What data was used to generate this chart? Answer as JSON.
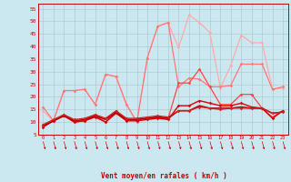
{
  "xlabel": "Vent moyen/en rafales ( km/h )",
  "background_color": "#cbe8f0",
  "grid_color": "#aac4cc",
  "x": [
    0,
    1,
    2,
    3,
    4,
    5,
    6,
    7,
    8,
    9,
    10,
    11,
    12,
    13,
    14,
    15,
    16,
    17,
    18,
    19,
    20,
    21,
    22,
    23
  ],
  "ylim": [
    5,
    57
  ],
  "xlim": [
    -0.5,
    23.5
  ],
  "yticks": [
    5,
    10,
    15,
    20,
    25,
    30,
    35,
    40,
    45,
    50,
    55
  ],
  "series": [
    {
      "color": "#ffaaaa",
      "values": [
        14.5,
        10.5,
        22.5,
        22.5,
        23.0,
        17.0,
        29.0,
        28.0,
        17.0,
        10.0,
        35.5,
        48.0,
        49.5,
        39.5,
        52.5,
        49.5,
        45.5,
        23.5,
        32.5,
        44.5,
        41.5,
        41.5,
        23.0,
        23.5
      ],
      "marker": "D",
      "markersize": 1.8,
      "linewidth": 0.9
    },
    {
      "color": "#ff7777",
      "values": [
        16.0,
        10.5,
        22.5,
        22.5,
        23.0,
        17.0,
        29.0,
        28.0,
        17.0,
        10.0,
        35.5,
        48.0,
        49.5,
        24.0,
        27.5,
        27.0,
        24.0,
        24.0,
        24.5,
        33.0,
        33.0,
        33.0,
        23.0,
        24.0
      ],
      "marker": "D",
      "markersize": 1.8,
      "linewidth": 0.9
    },
    {
      "color": "#ff4444",
      "values": [
        8.5,
        10.5,
        12.5,
        10.0,
        10.5,
        12.5,
        10.0,
        14.0,
        11.0,
        11.0,
        11.5,
        12.0,
        11.5,
        25.5,
        25.5,
        31.0,
        24.0,
        17.0,
        17.0,
        21.0,
        21.0,
        15.5,
        12.0,
        14.5
      ],
      "marker": "D",
      "markersize": 1.8,
      "linewidth": 0.9
    },
    {
      "color": "#dd0000",
      "values": [
        8.0,
        10.5,
        12.5,
        10.0,
        10.5,
        12.0,
        10.0,
        13.5,
        10.5,
        10.5,
        11.0,
        11.5,
        11.0,
        16.5,
        16.5,
        18.5,
        17.5,
        16.5,
        16.5,
        17.5,
        16.0,
        15.5,
        11.5,
        14.5
      ],
      "marker": "D",
      "markersize": 1.8,
      "linewidth": 1.0
    },
    {
      "color": "#aa0000",
      "values": [
        8.5,
        10.5,
        12.5,
        10.5,
        11.0,
        12.5,
        11.0,
        14.0,
        11.0,
        11.0,
        11.5,
        12.0,
        11.5,
        14.5,
        14.5,
        16.5,
        15.5,
        15.5,
        15.5,
        16.0,
        15.5,
        15.5,
        13.5,
        14.0
      ],
      "marker": null,
      "markersize": 0,
      "linewidth": 1.1
    },
    {
      "color": "#cc2222",
      "values": [
        9.0,
        11.0,
        13.0,
        11.0,
        11.5,
        13.0,
        11.5,
        14.5,
        11.5,
        11.5,
        12.0,
        12.5,
        12.0,
        14.5,
        14.5,
        16.0,
        15.5,
        15.0,
        15.5,
        15.5,
        15.5,
        15.5,
        13.5,
        14.0
      ],
      "marker": "D",
      "markersize": 1.8,
      "linewidth": 0.9
    }
  ]
}
